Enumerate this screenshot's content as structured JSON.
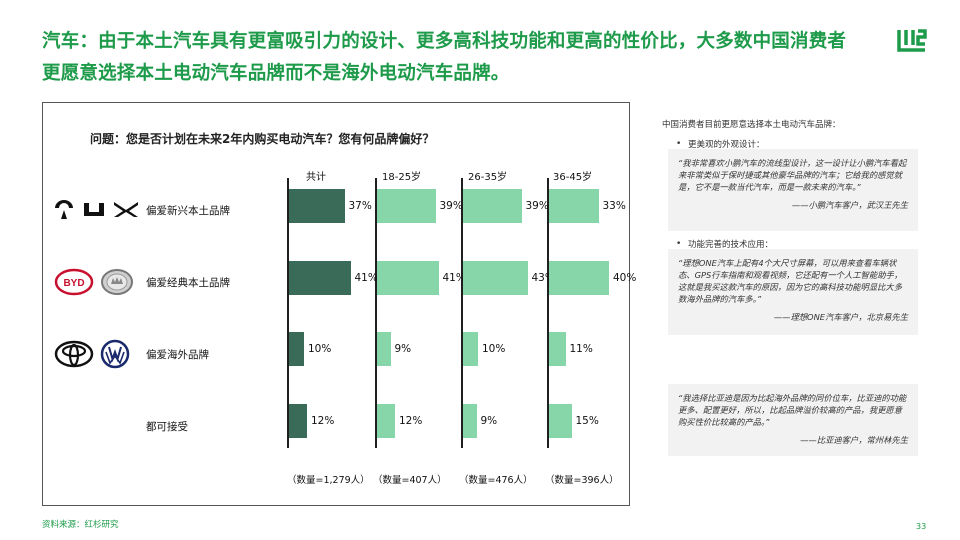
{
  "header": {
    "title": "汽车：由于本土汽车具有更富吸引力的设计、更多高科技功能和更高的性价比，大多数中国消费者更愿意选择本土电动汽车品牌而不是海外电动汽车品牌。",
    "brand_color": "#1e9b4a"
  },
  "survey": {
    "question": "问题：您是否计划在未来2年内购买电动汽车？您有何品牌偏好？",
    "columns": [
      "共计",
      "18-25岁",
      "26-35岁",
      "36-45岁"
    ],
    "counts": [
      "（数量=1,279人）",
      "（数量=407人）",
      "（数量=476人）",
      "（数量=396人）"
    ],
    "rows": [
      {
        "label": "偏爱新兴本土品牌",
        "values": [
          "37%",
          "39%",
          "39%",
          "33%"
        ],
        "numbers": [
          37,
          39,
          39,
          33
        ]
      },
      {
        "label": "偏爱经典本土品牌",
        "values": [
          "41%",
          "41%",
          "43%",
          "40%"
        ],
        "numbers": [
          41,
          41,
          43,
          40
        ]
      },
      {
        "label": "偏爱海外品牌",
        "values": [
          "10%",
          "9%",
          "10%",
          "11%"
        ],
        "numbers": [
          10,
          9,
          10,
          11
        ]
      },
      {
        "label": "都可接受",
        "values": [
          "12%",
          "12%",
          "9%",
          "15%"
        ],
        "numbers": [
          12,
          12,
          9,
          15
        ]
      }
    ],
    "colors": {
      "total": "#3a6b58",
      "group": "#86d6a9"
    },
    "brand_logos": {
      "row1": [
        "nio-logo",
        "li-auto-logo",
        "xpeng-logo"
      ],
      "row2": [
        "byd-logo",
        "great-wall-logo"
      ],
      "row3": [
        "toyota-logo",
        "volkswagen-logo"
      ]
    },
    "byd_text": "BYD"
  },
  "sidebar": {
    "title": "中国消费者目前更愿意选择本土电动汽车品牌：",
    "sections": [
      {
        "heading": "更美观的外观设计：",
        "quote": "“我非常喜欢小鹏汽车的流线型设计，这一设计让小鹏汽车看起来非常类似于保时捷或其他豪华品牌的汽车；它给我的感觉就是，它不是一款当代汽车，而是一款未来的汽车。”",
        "attribution": "——小鹏汽车客户，武汉王先生"
      },
      {
        "heading": "功能完善的技术应用：",
        "quote": "“理想ONE汽车上配有4个大尺寸屏幕，可以用来查看车辆状态、GPS行车指南和观看视频，它还配有一个人工智能助手，这就是我买这款汽车的原因，因为它的高科技功能明显比大多数海外品牌的汽车多。”",
        "attribution": "——理想ONE汽车客户，北京易先生"
      },
      {
        "heading": "",
        "quote": "“我选择比亚迪是因为比起海外品牌的同价位车，比亚迪的功能更多、配置更好，所以，比起品牌溢价较高的产品，我更愿意购买性价比较高的产品。”",
        "attribution": "——比亚迪客户，常州林先生"
      }
    ]
  },
  "footer": {
    "source": "资料来源：红杉研究",
    "page": "33"
  }
}
